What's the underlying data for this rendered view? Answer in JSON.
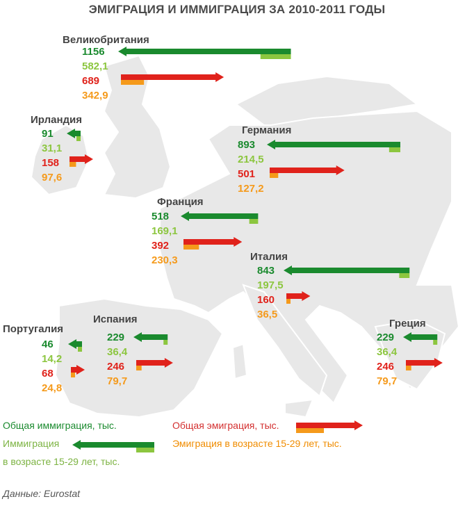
{
  "title": "ЭМИГРАЦИЯ И ИММИГРАЦИЯ ЗА 2010-2011 ГОДЫ",
  "source": "Данные: Eurostat",
  "colors": {
    "immigration_total": "#1a8a2e",
    "immigration_young": "#8cc63f",
    "emigration_total": "#e0221b",
    "emigration_young": "#f59a1b",
    "map_land": "#e6e6e6",
    "map_border": "#ffffff"
  },
  "legend": {
    "immigration_total": "Общая иммиграция, тыс.",
    "immigration_young_line1": "Иммиграция",
    "immigration_young_line2": "в возрасте 15-29 лет, тыс.",
    "emigration_total": "Общая эмиграция, тыс.",
    "emigration_young": "Эмиграция в возрасте 15-29 лет, тыс."
  },
  "chart_data": {
    "type": "bar",
    "title": "ЭМИГРАЦИЯ И ИММИГРАЦИЯ ЗА 2010-2011 ГОДЫ",
    "units": "тыс.",
    "series": [
      {
        "name": "Общая иммиграция, тыс.",
        "key": "imm_total"
      },
      {
        "name": "Иммиграция в возрасте 15-29 лет, тыс.",
        "key": "imm_young"
      },
      {
        "name": "Общая эмиграция, тыс.",
        "key": "emi_total"
      },
      {
        "name": "Эмиграция в возрасте 15-29 лет, тыс.",
        "key": "emi_young"
      }
    ],
    "countries": [
      {
        "name": "Великобритания",
        "imm_total": 1156,
        "imm_young": 582.1,
        "emi_total": 689,
        "emi_young": 342.9,
        "imm_total_label": "1156",
        "imm_young_label": "582,1",
        "emi_total_label": "689",
        "emi_young_label": "342,9"
      },
      {
        "name": "Ирландия",
        "imm_total": 91,
        "imm_young": 31.1,
        "emi_total": 158,
        "emi_young": 97.6,
        "imm_total_label": "91",
        "imm_young_label": "31,1",
        "emi_total_label": "158",
        "emi_young_label": "97,6"
      },
      {
        "name": "Германия",
        "imm_total": 893,
        "imm_young": 214.5,
        "emi_total": 501,
        "emi_young": 127.2,
        "imm_total_label": "893",
        "imm_young_label": "214,5",
        "emi_total_label": "501",
        "emi_young_label": "127,2"
      },
      {
        "name": "Франция",
        "imm_total": 518,
        "imm_young": 169.1,
        "emi_total": 392,
        "emi_young": 230.3,
        "imm_total_label": "518",
        "imm_young_label": "169,1",
        "emi_total_label": "392",
        "emi_young_label": "230,3"
      },
      {
        "name": "Италия",
        "imm_total": 843,
        "imm_young": 197.5,
        "emi_total": 160,
        "emi_young": 36.5,
        "imm_total_label": "843",
        "imm_young_label": "197,5",
        "emi_total_label": "160",
        "emi_young_label": "36,5"
      },
      {
        "name": "Португалия",
        "imm_total": 46,
        "imm_young": 14.2,
        "emi_total": 68,
        "emi_young": 24.8,
        "imm_total_label": "46",
        "imm_young_label": "14,2",
        "emi_total_label": "68",
        "emi_young_label": "24,8"
      },
      {
        "name": "Испания",
        "imm_total": 229,
        "imm_young": 36.4,
        "emi_total": 246,
        "emi_young": 79.7,
        "imm_total_label": "229",
        "imm_young_label": "36,4",
        "emi_total_label": "246",
        "emi_young_label": "79,7"
      },
      {
        "name": "Греция",
        "imm_total": 229,
        "imm_young": 36.4,
        "emi_total": 246,
        "emi_young": 79.7,
        "imm_total_label": "229",
        "imm_young_label": "36,4",
        "emi_total_label": "246",
        "emi_young_label": "79,7"
      }
    ]
  }
}
